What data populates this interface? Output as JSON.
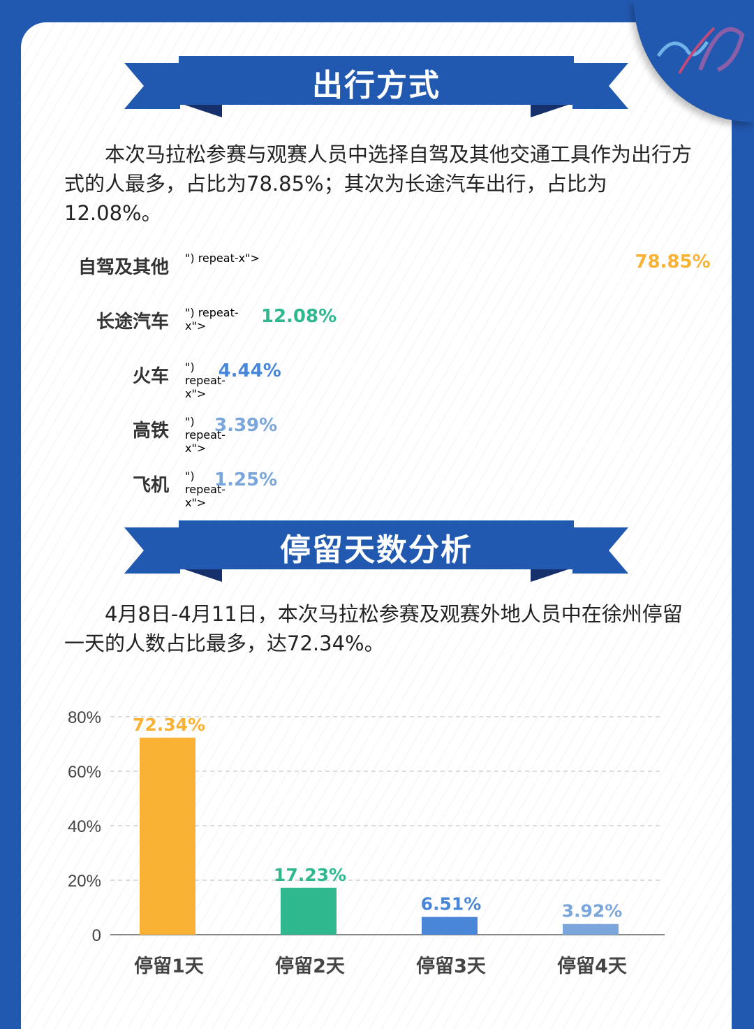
{
  "section1": {
    "title": "出行方式",
    "paragraph": "本次马拉松参赛与观赛人员中选择自驾及其他交通工具作为出行方式的人最多，占比为78.85%；其次为长途汽车出行，占比为12.08%。"
  },
  "section2": {
    "title": "停留天数分析",
    "paragraph": "4月8日-4月11日，本次马拉松参赛及观赛外地人员中在徐州停留一天的人数占比最多，达72.34%。"
  },
  "colors": {
    "background": "#2259b0",
    "orange": "#f9b233",
    "green": "#2fb88e",
    "blue": "#4a86d8",
    "lightblue": "#7aa6dc"
  },
  "chart_data": [
    {
      "type": "bar",
      "orientation": "horizontal",
      "categories": [
        "自驾及其他",
        "长途汽车",
        "火车",
        "高铁",
        "飞机"
      ],
      "values": [
        78.85,
        12.08,
        4.44,
        3.39,
        1.25
      ],
      "labels": [
        "78.85%",
        "12.08%",
        "4.44%",
        "3.39%",
        "1.25%"
      ],
      "colors": [
        "#f9b233",
        "#2fb88e",
        "#4a86d8",
        "#7aa6dc",
        "#7aa6dc"
      ]
    },
    {
      "type": "bar",
      "categories": [
        "停留1天",
        "停留2天",
        "停留3天",
        "停留4天"
      ],
      "values": [
        72.34,
        17.23,
        6.51,
        3.92
      ],
      "labels": [
        "72.34%",
        "17.23%",
        "6.51%",
        "3.92%"
      ],
      "colors": [
        "#f9b233",
        "#2fb88e",
        "#4a86d8",
        "#7aa6dc"
      ],
      "ylim": [
        0,
        80
      ],
      "yticks": [
        "0",
        "20%",
        "40%",
        "60%",
        "80%"
      ],
      "grid": true
    }
  ]
}
